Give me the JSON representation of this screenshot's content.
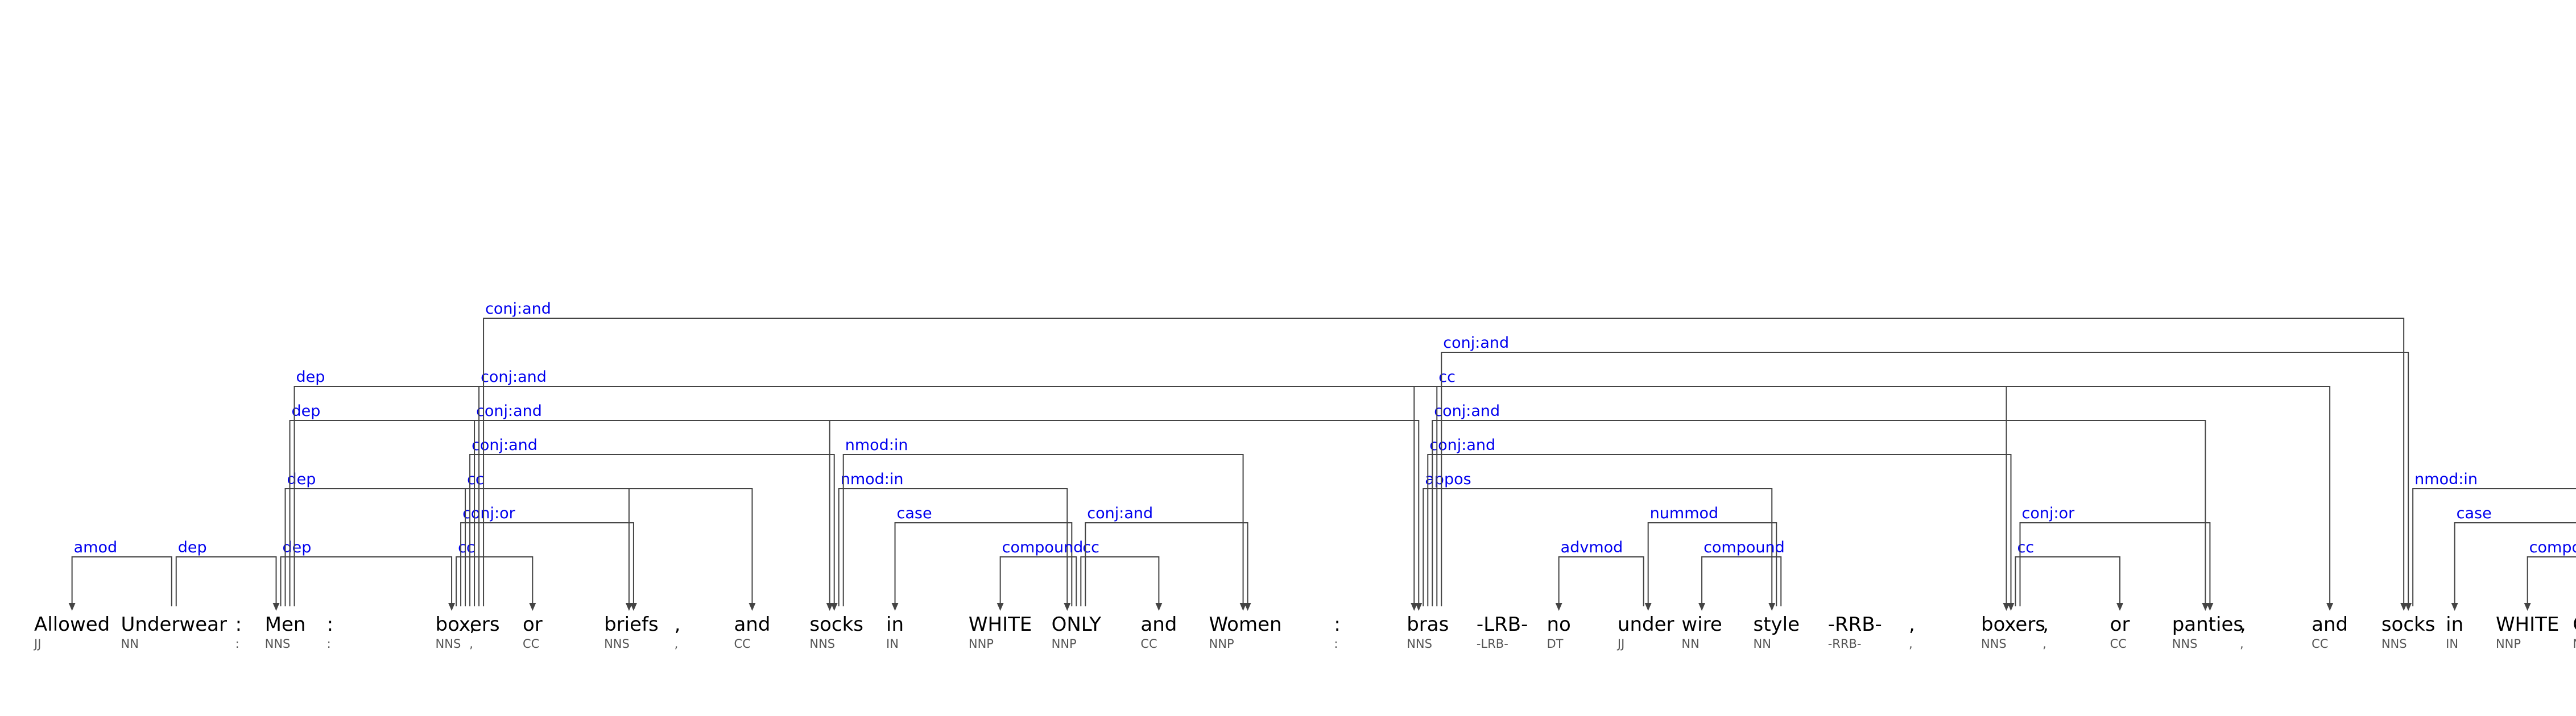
{
  "colors": {
    "background": "#ffffff",
    "word": "#000000",
    "tag": "#555555",
    "label": "#0000ee",
    "edge": "#444444"
  },
  "tokens": [
    {
      "word": "Allowed",
      "tag": "JJ"
    },
    {
      "word": "Underwear",
      "tag": "NN"
    },
    {
      "word": ":",
      "tag": ":"
    },
    {
      "word": "Men",
      "tag": "NNS"
    },
    {
      "word": ":",
      "tag": ":"
    },
    {
      "word": "boxers",
      "tag": "NNS"
    },
    {
      "word": ",",
      "tag": ","
    },
    {
      "word": "or",
      "tag": "CC"
    },
    {
      "word": "briefs",
      "tag": "NNS"
    },
    {
      "word": ",",
      "tag": ","
    },
    {
      "word": "and",
      "tag": "CC"
    },
    {
      "word": "socks",
      "tag": "NNS"
    },
    {
      "word": "in",
      "tag": "IN"
    },
    {
      "word": "WHITE",
      "tag": "NNP"
    },
    {
      "word": "ONLY",
      "tag": "NNP"
    },
    {
      "word": "and",
      "tag": "CC"
    },
    {
      "word": "Women",
      "tag": "NNP"
    },
    {
      "word": ":",
      "tag": ":"
    },
    {
      "word": "bras",
      "tag": "NNS"
    },
    {
      "word": "-LRB-",
      "tag": "-LRB-"
    },
    {
      "word": "no",
      "tag": "DT"
    },
    {
      "word": "under",
      "tag": "JJ"
    },
    {
      "word": "wire",
      "tag": "NN"
    },
    {
      "word": "style",
      "tag": "NN"
    },
    {
      "word": "-RRB-",
      "tag": "-RRB-"
    },
    {
      "word": ",",
      "tag": ","
    },
    {
      "word": "boxers",
      "tag": "NNS"
    },
    {
      "word": ",",
      "tag": ","
    },
    {
      "word": "or",
      "tag": "CC"
    },
    {
      "word": "panties",
      "tag": "NNS"
    },
    {
      "word": ",",
      "tag": ","
    },
    {
      "word": "and",
      "tag": "CC"
    },
    {
      "word": "socks",
      "tag": "NNS"
    },
    {
      "word": "in",
      "tag": "IN"
    },
    {
      "word": "WHITE",
      "tag": "NNP"
    },
    {
      "word": "ONLY",
      "tag": "NNP"
    }
  ],
  "dependencies": [
    {
      "label": "amod",
      "head": 1,
      "dep": 0
    },
    {
      "label": "dep",
      "head": 1,
      "dep": 3
    },
    {
      "label": "dep",
      "head": 3,
      "dep": 5
    },
    {
      "label": "dep",
      "head": 3,
      "dep": 8
    },
    {
      "label": "dep",
      "head": 3,
      "dep": 11
    },
    {
      "label": "dep",
      "head": 3,
      "dep": 18
    },
    {
      "label": "cc",
      "head": 5,
      "dep": 7
    },
    {
      "label": "conj:or",
      "head": 5,
      "dep": 8
    },
    {
      "label": "cc",
      "head": 5,
      "dep": 10
    },
    {
      "label": "conj:and",
      "head": 5,
      "dep": 11
    },
    {
      "label": "conj:and",
      "head": 5,
      "dep": 18
    },
    {
      "label": "conj:and",
      "head": 5,
      "dep": 26
    },
    {
      "label": "conj:and",
      "head": 5,
      "dep": 32
    },
    {
      "label": "nmod:in",
      "head": 11,
      "dep": 14
    },
    {
      "label": "nmod:in",
      "head": 11,
      "dep": 16
    },
    {
      "label": "case",
      "head": 14,
      "dep": 12
    },
    {
      "label": "compound",
      "head": 14,
      "dep": 13
    },
    {
      "label": "cc",
      "head": 14,
      "dep": 15
    },
    {
      "label": "conj:and",
      "head": 14,
      "dep": 16
    },
    {
      "label": "appos",
      "head": 18,
      "dep": 23
    },
    {
      "label": "conj:and",
      "head": 18,
      "dep": 26
    },
    {
      "label": "conj:and",
      "head": 18,
      "dep": 29
    },
    {
      "label": "cc",
      "head": 18,
      "dep": 31
    },
    {
      "label": "conj:and",
      "head": 18,
      "dep": 32
    },
    {
      "label": "advmod",
      "head": 21,
      "dep": 20
    },
    {
      "label": "nummod",
      "head": 23,
      "dep": 21
    },
    {
      "label": "compound",
      "head": 23,
      "dep": 22
    },
    {
      "label": "cc",
      "head": 26,
      "dep": 28
    },
    {
      "label": "conj:or",
      "head": 26,
      "dep": 29
    },
    {
      "label": "nmod:in",
      "head": 32,
      "dep": 35
    },
    {
      "label": "case",
      "head": 35,
      "dep": 33
    },
    {
      "label": "compound",
      "head": 35,
      "dep": 34
    }
  ]
}
